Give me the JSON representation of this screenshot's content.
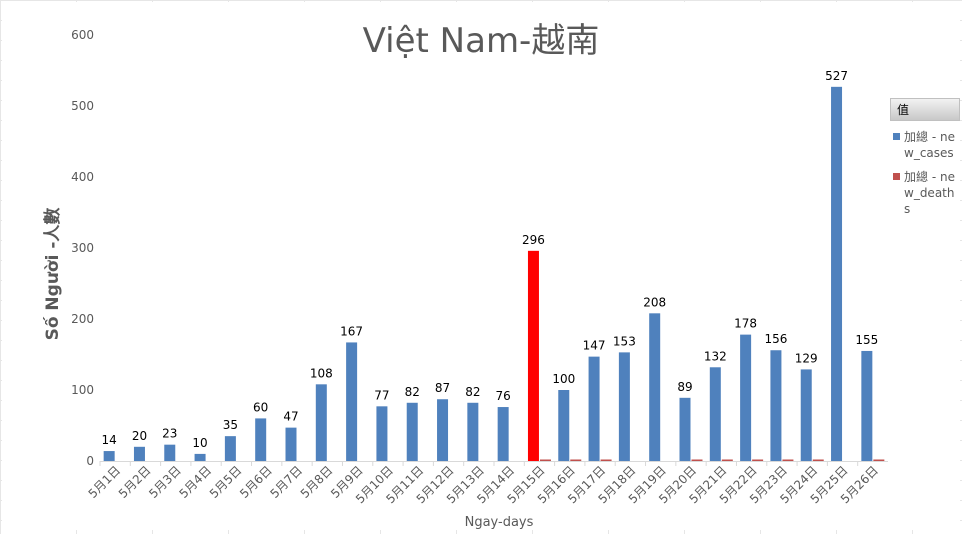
{
  "chart_data": {
    "type": "bar",
    "title": "Việt Nam-越南",
    "xlabel": "Ngay-days",
    "ylabel": "Số Người -人數",
    "ylim": [
      0,
      600
    ],
    "yticks": [
      0,
      100,
      200,
      300,
      400,
      500,
      600
    ],
    "grid": false,
    "legend_position": "right",
    "legend_title": "值",
    "categories": [
      "5月1日",
      "5月2日",
      "5月3日",
      "5月4日",
      "5月5日",
      "5月6日",
      "5月7日",
      "5月8日",
      "5月9日",
      "5月10日",
      "5月11日",
      "5月12日",
      "5月13日",
      "5月14日",
      "5月15日",
      "5月16日",
      "5月17日",
      "5月18日",
      "5月19日",
      "5月20日",
      "5月21日",
      "5月22日",
      "5月23日",
      "5月24日",
      "5月25日",
      "5月26日"
    ],
    "series": [
      {
        "name": "加總 - new_cases",
        "color": "#4f81bd",
        "values": [
          14,
          20,
          23,
          10,
          35,
          60,
          47,
          108,
          167,
          77,
          82,
          87,
          82,
          76,
          296,
          100,
          147,
          153,
          208,
          89,
          132,
          178,
          156,
          129,
          527,
          155
        ],
        "highlight": {
          "index": 14,
          "color": "#ff0000"
        }
      },
      {
        "name": "加總 - new_deaths",
        "color": "#c0504d",
        "values": [
          0,
          0,
          0,
          0,
          0,
          0,
          0,
          0,
          0,
          0,
          0,
          0,
          0,
          0,
          1,
          1,
          1,
          0,
          0,
          1,
          1,
          1,
          1,
          1,
          0,
          1
        ]
      }
    ]
  }
}
